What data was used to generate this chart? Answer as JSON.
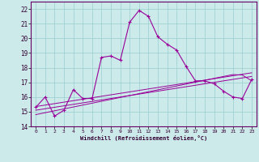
{
  "xlabel": "Windchill (Refroidissement éolien,°C)",
  "xlim": [
    -0.5,
    23.5
  ],
  "ylim": [
    14,
    22.5
  ],
  "yticks": [
    14,
    15,
    16,
    17,
    18,
    19,
    20,
    21,
    22
  ],
  "xticks": [
    0,
    1,
    2,
    3,
    4,
    5,
    6,
    7,
    8,
    9,
    10,
    11,
    12,
    13,
    14,
    15,
    16,
    17,
    18,
    19,
    20,
    21,
    22,
    23
  ],
  "bg_color": "#cceaea",
  "line_color": "#990099",
  "grid_color": "#99cccc",
  "main_line_x": [
    0,
    1,
    2,
    3,
    4,
    5,
    6,
    7,
    8,
    9,
    10,
    11,
    12,
    13,
    14,
    15,
    16,
    17,
    18,
    19,
    20,
    21,
    22,
    23
  ],
  "main_line_y": [
    15.3,
    16.0,
    14.7,
    15.1,
    16.5,
    15.9,
    15.9,
    18.7,
    18.8,
    18.5,
    21.1,
    21.9,
    21.5,
    20.1,
    19.6,
    19.2,
    18.1,
    17.1,
    17.1,
    16.9,
    16.4,
    16.0,
    15.9,
    17.2
  ],
  "ref_line1_y": [
    15.35,
    15.45,
    15.55,
    15.65,
    15.75,
    15.85,
    15.95,
    16.05,
    16.15,
    16.25,
    16.35,
    16.45,
    16.55,
    16.65,
    16.75,
    16.85,
    16.95,
    17.05,
    17.15,
    17.25,
    17.35,
    17.45,
    17.55,
    17.65
  ],
  "ref_line2_y": [
    15.1,
    15.2,
    15.3,
    15.4,
    15.5,
    15.6,
    15.7,
    15.8,
    15.9,
    16.0,
    16.1,
    16.2,
    16.3,
    16.4,
    16.5,
    16.6,
    16.7,
    16.8,
    16.9,
    17.0,
    17.1,
    17.2,
    17.3,
    17.4
  ],
  "ref_line3_y": [
    14.8,
    14.93,
    15.06,
    15.19,
    15.32,
    15.45,
    15.58,
    15.71,
    15.84,
    15.97,
    16.1,
    16.23,
    16.36,
    16.49,
    16.62,
    16.75,
    16.88,
    17.01,
    17.14,
    17.27,
    17.4,
    17.53,
    17.5,
    17.1
  ]
}
